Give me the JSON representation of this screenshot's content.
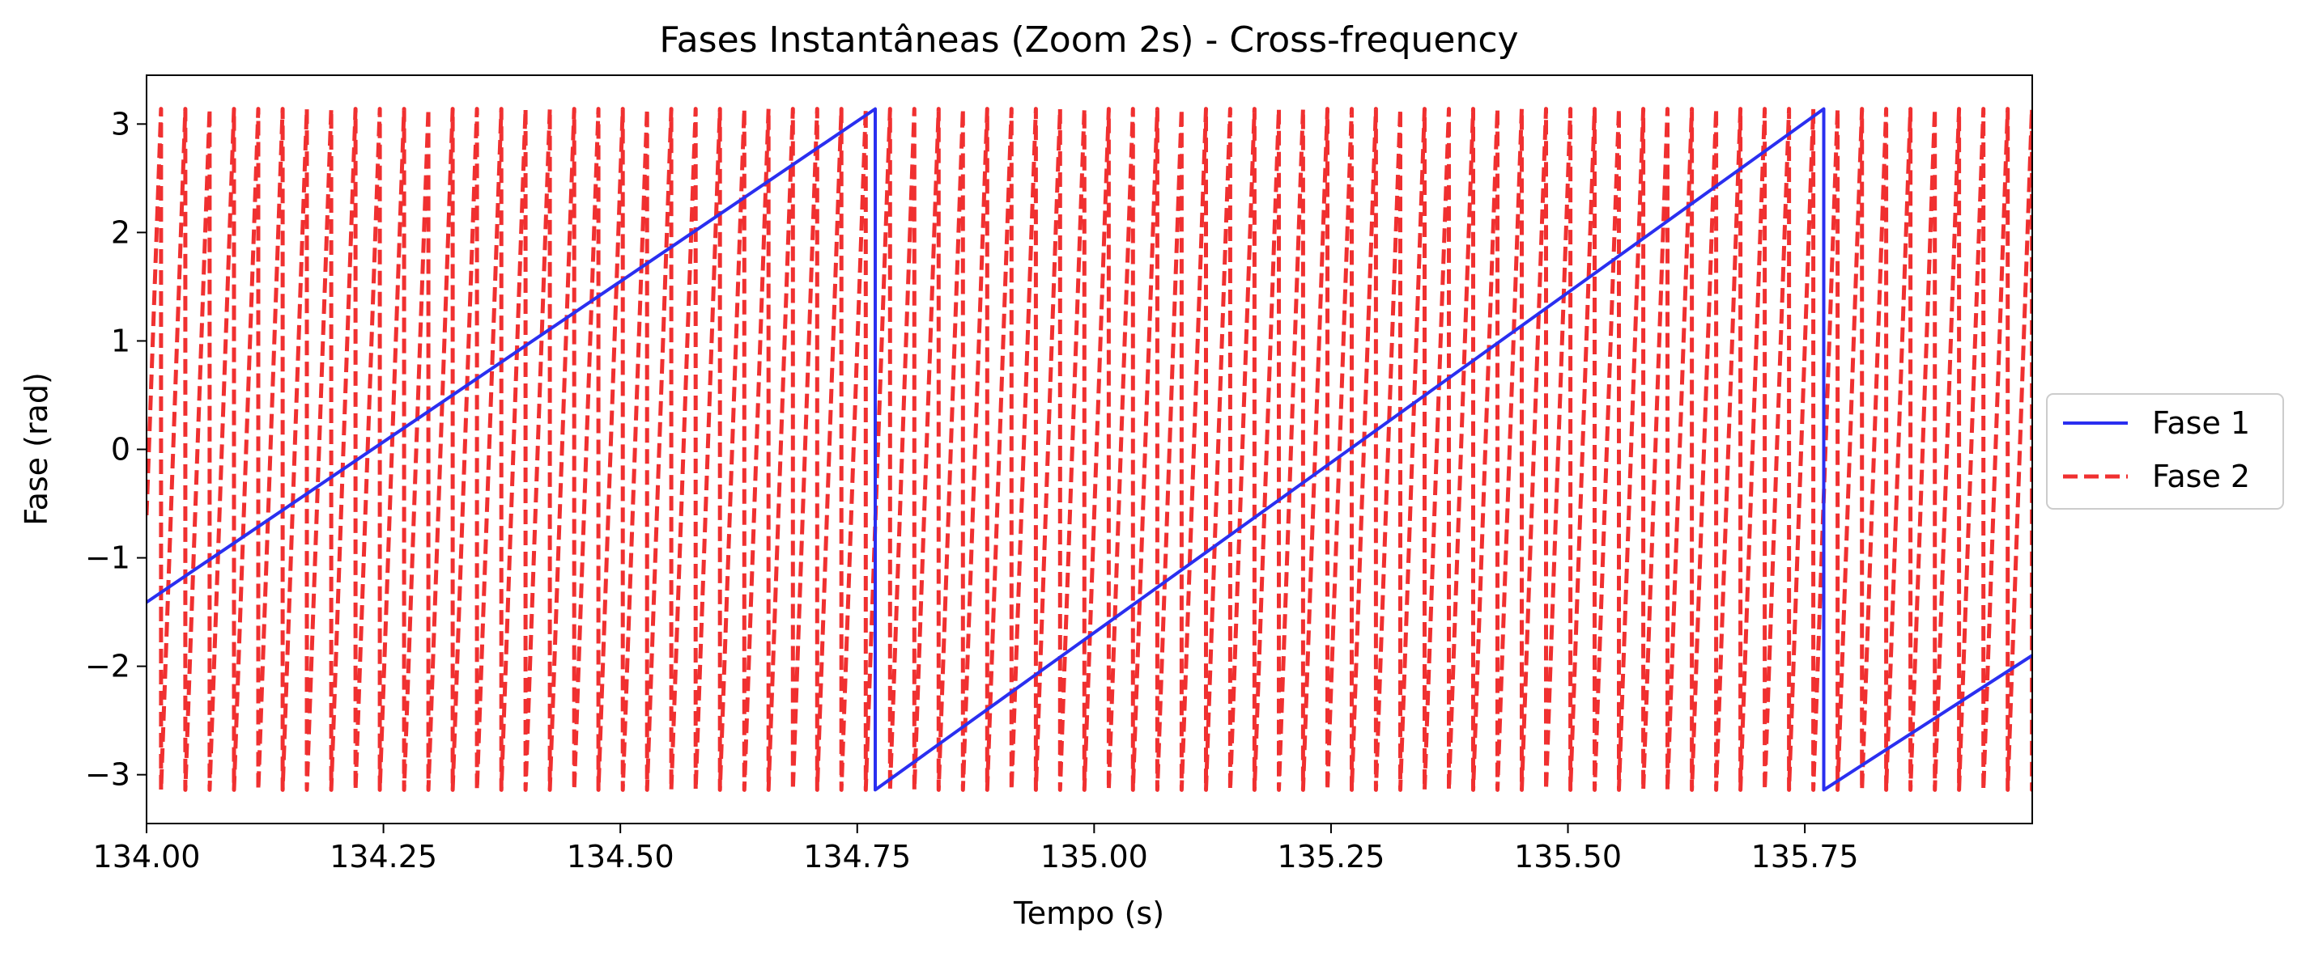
{
  "chart_data": {
    "type": "line",
    "title": "Fases Instantâneas (Zoom 2s) - Cross-frequency",
    "xlabel": "Tempo (s)",
    "ylabel": "Fase (rad)",
    "xlim": [
      134.0,
      135.99
    ],
    "ylim": [
      -3.45,
      3.45
    ],
    "x_ticks": [
      134.0,
      134.25,
      134.5,
      134.75,
      135.0,
      135.25,
      135.5,
      135.75
    ],
    "x_tick_labels": [
      "134.00",
      "134.25",
      "134.50",
      "134.75",
      "135.00",
      "135.25",
      "135.50",
      "135.75"
    ],
    "y_ticks": [
      -3,
      -2,
      -1,
      0,
      1,
      2,
      3
    ],
    "y_tick_labels": [
      "−3",
      "−2",
      "−1",
      "0",
      "1",
      "2",
      "3"
    ],
    "grid": false,
    "legend_position": "right, outside plot",
    "series": [
      {
        "name": "Fase 1",
        "color": "#2a2ff0",
        "style": "solid",
        "points": [
          [
            134.0,
            -1.41
          ],
          [
            134.769,
            3.14
          ],
          [
            134.769,
            -3.14
          ],
          [
            135.77,
            3.14
          ],
          [
            135.77,
            -3.14
          ],
          [
            135.99,
            -1.9
          ]
        ]
      },
      {
        "name": "Fase 2",
        "color": "#f03030",
        "style": "dashed",
        "frequency_hz": 39,
        "range": [
          -3.14,
          3.14
        ],
        "wrap_times": [
          134.0153,
          134.0409,
          134.0666,
          134.0923,
          134.1179,
          134.1436,
          134.1692,
          134.1949,
          134.2205,
          134.2462,
          134.2718,
          134.2974,
          134.3231,
          134.3487,
          134.3744,
          134.4,
          134.4256,
          134.4513,
          134.4769,
          134.5026,
          134.5282,
          134.5538,
          134.5795,
          134.6051,
          134.6308,
          134.6564,
          134.6821,
          134.7077,
          134.7333,
          134.759,
          134.7846,
          134.8103,
          134.8359,
          134.8615,
          134.8872,
          134.9128,
          134.9385,
          134.9641,
          134.9897,
          135.0154,
          135.041,
          135.0667,
          135.0923,
          135.118,
          135.1436,
          135.1692,
          135.1949,
          135.2205,
          135.2462,
          135.2718,
          135.2974,
          135.3231,
          135.3487,
          135.3744,
          135.4,
          135.4256,
          135.4513,
          135.4769,
          135.5026,
          135.5282,
          135.5538,
          135.5795,
          135.6051,
          135.6308,
          135.6564,
          135.6821,
          135.7077,
          135.7333,
          135.759,
          135.7846,
          135.8103,
          135.8359,
          135.8615,
          135.8872,
          135.9128,
          135.9385,
          135.9641,
          135.9897
        ]
      }
    ]
  }
}
